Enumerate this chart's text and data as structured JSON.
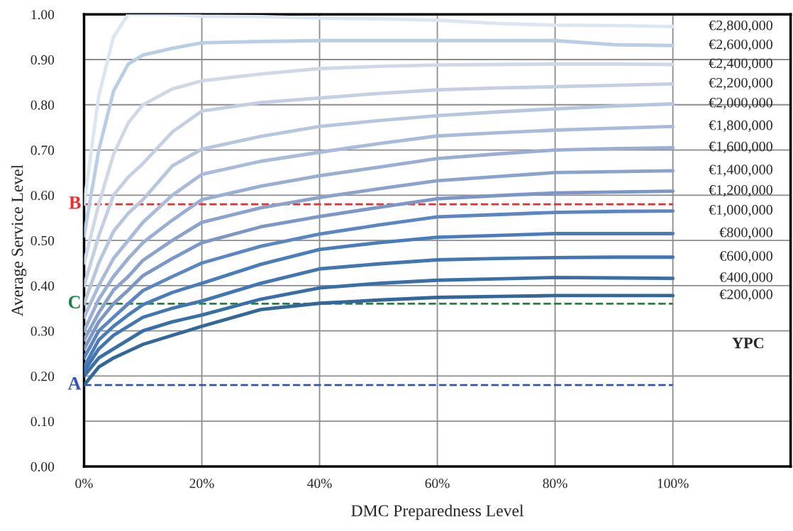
{
  "chart_data": {
    "type": "line",
    "xlabel": "DMC Preparedness Level",
    "ylabel": "Average Service Level",
    "x": [
      0,
      2.5,
      5,
      7.5,
      10,
      15,
      20,
      30,
      40,
      50,
      60,
      70,
      80,
      90,
      100
    ],
    "series": [
      {
        "name": "€2,800,000",
        "color": "#dce6f2",
        "values": [
          0.58,
          0.82,
          0.95,
          1.0,
          1.0,
          1.0,
          0.996,
          0.995,
          0.992,
          0.99,
          0.987,
          0.98,
          0.976,
          0.975,
          0.973
        ]
      },
      {
        "name": "€2,600,000",
        "color": "#b9cde5",
        "values": [
          0.51,
          0.7,
          0.83,
          0.89,
          0.91,
          0.925,
          0.937,
          0.94,
          0.942,
          0.942,
          0.942,
          0.942,
          0.942,
          0.933,
          0.931
        ]
      },
      {
        "name": "€2,400,000",
        "color": "#d0d8e8",
        "values": [
          0.45,
          0.58,
          0.69,
          0.76,
          0.8,
          0.835,
          0.853,
          0.868,
          0.88,
          0.885,
          0.888,
          0.889,
          0.89,
          0.89,
          0.889
        ]
      },
      {
        "name": "€2,200,000",
        "color": "#c5cfe4",
        "values": [
          0.4,
          0.51,
          0.6,
          0.64,
          0.67,
          0.74,
          0.786,
          0.805,
          0.815,
          0.825,
          0.833,
          0.837,
          0.84,
          0.843,
          0.846
        ]
      },
      {
        "name": "€2,000,000",
        "color": "#b7c6df",
        "values": [
          0.36,
          0.45,
          0.52,
          0.56,
          0.59,
          0.665,
          0.702,
          0.73,
          0.752,
          0.765,
          0.776,
          0.784,
          0.791,
          0.797,
          0.802
        ]
      },
      {
        "name": "€1,800,000",
        "color": "#a9badb",
        "values": [
          0.33,
          0.4,
          0.46,
          0.5,
          0.54,
          0.6,
          0.646,
          0.675,
          0.695,
          0.714,
          0.731,
          0.738,
          0.744,
          0.748,
          0.752
        ]
      },
      {
        "name": "€1,600,000",
        "color": "#9aaed4",
        "values": [
          0.3,
          0.37,
          0.42,
          0.46,
          0.495,
          0.545,
          0.59,
          0.62,
          0.643,
          0.662,
          0.681,
          0.691,
          0.7,
          0.703,
          0.705
        ]
      },
      {
        "name": "€1,400,000",
        "color": "#8ba2cd",
        "values": [
          0.28,
          0.34,
          0.39,
          0.42,
          0.456,
          0.5,
          0.54,
          0.572,
          0.595,
          0.614,
          0.632,
          0.641,
          0.65,
          0.652,
          0.654
        ]
      },
      {
        "name": "€1,200,000",
        "color": "#7b96c7",
        "values": [
          0.26,
          0.32,
          0.36,
          0.39,
          0.422,
          0.46,
          0.495,
          0.53,
          0.553,
          0.573,
          0.592,
          0.599,
          0.605,
          0.607,
          0.609
        ]
      },
      {
        "name": "€1,000,000",
        "color": "#5b86c2",
        "values": [
          0.24,
          0.3,
          0.33,
          0.36,
          0.389,
          0.42,
          0.45,
          0.487,
          0.514,
          0.534,
          0.552,
          0.557,
          0.562,
          0.564,
          0.565
        ]
      },
      {
        "name": "€800,000",
        "color": "#4a7cba",
        "values": [
          0.22,
          0.28,
          0.31,
          0.335,
          0.358,
          0.385,
          0.405,
          0.447,
          0.48,
          0.495,
          0.507,
          0.511,
          0.515,
          0.515,
          0.515
        ]
      },
      {
        "name": "€600,000",
        "color": "#4276b0",
        "values": [
          0.21,
          0.26,
          0.29,
          0.31,
          0.33,
          0.35,
          0.366,
          0.405,
          0.437,
          0.448,
          0.457,
          0.46,
          0.462,
          0.463,
          0.463
        ]
      },
      {
        "name": "€400,000",
        "color": "#3a6ea6",
        "values": [
          0.2,
          0.24,
          0.26,
          0.28,
          0.3,
          0.32,
          0.335,
          0.37,
          0.395,
          0.405,
          0.412,
          0.415,
          0.418,
          0.417,
          0.416
        ]
      },
      {
        "name": "€200,000",
        "color": "#33679a",
        "values": [
          0.18,
          0.22,
          0.24,
          0.255,
          0.27,
          0.29,
          0.31,
          0.347,
          0.361,
          0.368,
          0.374,
          0.376,
          0.378,
          0.378,
          0.378
        ]
      }
    ],
    "xlim": [
      0,
      120
    ],
    "xticks": [
      {
        "value": 0,
        "label": "0%"
      },
      {
        "value": 20,
        "label": "20%"
      },
      {
        "value": 40,
        "label": "40%"
      },
      {
        "value": 60,
        "label": "60%"
      },
      {
        "value": 80,
        "label": "80%"
      },
      {
        "value": 100,
        "label": "100%"
      }
    ],
    "ylim": [
      0,
      1
    ],
    "yticks": [
      {
        "value": 0,
        "label": "0.00"
      },
      {
        "value": 0.1,
        "label": "0.10"
      },
      {
        "value": 0.2,
        "label": "0.20"
      },
      {
        "value": 0.3,
        "label": "0.30"
      },
      {
        "value": 0.4,
        "label": "0.40"
      },
      {
        "value": 0.5,
        "label": "0.50"
      },
      {
        "value": 0.6,
        "label": "0.60"
      },
      {
        "value": 0.7,
        "label": "0.70"
      },
      {
        "value": 0.8,
        "label": "0.80"
      },
      {
        "value": 0.9,
        "label": "0.90"
      },
      {
        "value": 1,
        "label": "1.00"
      }
    ],
    "ref_lines": [
      {
        "axis": "y",
        "value": 0.58,
        "label": "B",
        "color": "#ee2b2b",
        "line_style": "dashed"
      },
      {
        "axis": "y",
        "value": 0.36,
        "label": "C",
        "color": "#1e8540",
        "line_style": "dashed"
      },
      {
        "axis": "y",
        "value": 0.18,
        "label": "A",
        "color": "#3355aa",
        "line_style": "dashed"
      }
    ],
    "annotations": [
      "YPC"
    ],
    "grid": true,
    "legend": false,
    "marker": "none",
    "line_style": "solid"
  }
}
